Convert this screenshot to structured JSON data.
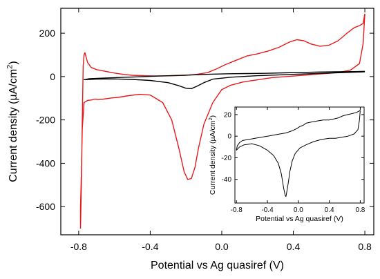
{
  "chart_data": [
    {
      "type": "line",
      "xlabel": "Potential vs Ag quasiref (V)",
      "ylabel_main": "Current density (µA/cm",
      "ylabel_sup": "2",
      "ylabel_tail": ")",
      "xlim": [
        -0.9,
        0.85
      ],
      "ylim": [
        -730,
        315
      ],
      "xticks": [
        -0.8,
        -0.4,
        0.0,
        0.4,
        0.8
      ],
      "xtick_labels": [
        "-0.8",
        "-0.4",
        "0.0",
        "0.4",
        "0.8"
      ],
      "yticks": [
        200,
        0,
        -200,
        -400,
        -600
      ],
      "ytick_labels": [
        "200",
        "0",
        "-200",
        "-400",
        "-600"
      ],
      "grid": false,
      "series": [
        {
          "color": "#e8191c",
          "x": [
            0.8,
            0.79,
            0.77,
            0.72,
            0.66,
            0.6,
            0.52,
            0.44,
            0.36,
            0.28,
            0.2,
            0.12,
            0.05,
            0.0,
            -0.05,
            -0.1,
            -0.13,
            -0.15,
            -0.17,
            -0.19,
            -0.21,
            -0.24,
            -0.28,
            -0.33,
            -0.4,
            -0.46,
            -0.52,
            -0.58,
            -0.62,
            -0.66,
            -0.69,
            -0.71,
            -0.73,
            -0.75,
            -0.77,
            -0.78,
            -0.785,
            -0.79,
            -0.79,
            -0.785,
            -0.78,
            -0.775,
            -0.77,
            -0.765,
            -0.76,
            -0.75,
            -0.73,
            -0.7,
            -0.65,
            -0.6,
            -0.55,
            -0.5,
            -0.44,
            -0.38,
            -0.32,
            -0.26,
            -0.2,
            -0.14,
            -0.08,
            -0.03,
            0.02,
            0.08,
            0.14,
            0.2,
            0.26,
            0.32,
            0.38,
            0.42,
            0.46,
            0.5,
            0.55,
            0.6,
            0.65,
            0.7,
            0.74,
            0.77,
            0.79,
            0.8
          ],
          "y": [
            290,
            150,
            60,
            30,
            20,
            15,
            10,
            5,
            0,
            -5,
            -15,
            -25,
            -40,
            -60,
            -120,
            -220,
            -330,
            -420,
            -470,
            -475,
            -440,
            -330,
            -200,
            -120,
            -85,
            -82,
            -88,
            -96,
            -99,
            -104,
            -106,
            -104,
            -108,
            -110,
            -120,
            -240,
            -450,
            -600,
            -700,
            -500,
            -200,
            50,
            100,
            110,
            95,
            65,
            42,
            32,
            24,
            16,
            10,
            6,
            4,
            3,
            3,
            4,
            6,
            10,
            18,
            35,
            55,
            75,
            95,
            105,
            118,
            135,
            160,
            170,
            165,
            150,
            140,
            145,
            165,
            200,
            225,
            235,
            245,
            290
          ]
        },
        {
          "color": "#000000",
          "x": [
            0.8,
            0.6,
            0.4,
            0.2,
            0.05,
            -0.05,
            -0.1,
            -0.14,
            -0.17,
            -0.2,
            -0.24,
            -0.3,
            -0.4,
            -0.5,
            -0.6,
            -0.7,
            -0.74,
            -0.77,
            -0.74,
            -0.66,
            -0.56,
            -0.46,
            -0.36,
            -0.26,
            -0.16,
            -0.06,
            0.04,
            0.14,
            0.24,
            0.34,
            0.44,
            0.54,
            0.64,
            0.74,
            0.8
          ],
          "y": [
            22,
            16,
            10,
            4,
            -3,
            -12,
            -28,
            -45,
            -56,
            -54,
            -42,
            -28,
            -18,
            -13,
            -11,
            -12,
            -13,
            -14,
            -10,
            -7,
            -4,
            -1,
            2,
            5,
            8,
            11,
            13,
            14,
            15,
            17,
            19,
            21,
            22,
            23,
            24
          ]
        }
      ]
    },
    {
      "type": "line",
      "xlabel": "Potential vs Ag quasiref (V)",
      "ylabel_main": "Current density (µA/cm",
      "ylabel_sup": "2",
      "ylabel_tail": ")",
      "xlim": [
        -0.82,
        0.85
      ],
      "ylim": [
        -62,
        27
      ],
      "xticks": [
        -0.8,
        -0.4,
        0.0,
        0.4,
        0.8
      ],
      "xtick_labels": [
        "-0.8",
        "-0.4",
        "0.0",
        "0.4",
        "0.8"
      ],
      "yticks": [
        20,
        0,
        -20,
        -40
      ],
      "ytick_labels": [
        "20",
        "0",
        "-20",
        "-40"
      ],
      "grid": false,
      "series": [
        {
          "color": "#000000",
          "x": [
            0.8,
            0.79,
            0.77,
            0.72,
            0.64,
            0.56,
            0.48,
            0.4,
            0.3,
            0.2,
            0.1,
            0.02,
            -0.04,
            -0.08,
            -0.11,
            -0.13,
            -0.15,
            -0.16,
            -0.17,
            -0.19,
            -0.22,
            -0.26,
            -0.32,
            -0.4,
            -0.5,
            -0.6,
            -0.7,
            -0.76,
            -0.8,
            -0.79,
            -0.76,
            -0.72,
            -0.64,
            -0.56,
            -0.48,
            -0.4,
            -0.32,
            -0.24,
            -0.16,
            -0.08,
            -0.02,
            0.02,
            0.06,
            0.1,
            0.16,
            0.24,
            0.32,
            0.4,
            0.46,
            0.52,
            0.58,
            0.64,
            0.7,
            0.75,
            0.78,
            0.8
          ],
          "y": [
            24,
            15,
            6,
            2,
            0,
            -1,
            -2,
            -2,
            -3,
            -5,
            -8,
            -11,
            -16,
            -23,
            -33,
            -43,
            -52,
            -56,
            -55,
            -48,
            -35,
            -25,
            -18,
            -13,
            -9,
            -7,
            -8,
            -10,
            -13,
            -9,
            -6,
            -4,
            -3,
            -2,
            -1,
            0,
            1,
            2,
            3,
            5,
            7,
            9,
            10,
            12,
            13,
            14,
            15,
            15,
            16,
            17,
            19,
            20,
            21,
            22,
            23,
            24
          ]
        }
      ]
    }
  ]
}
